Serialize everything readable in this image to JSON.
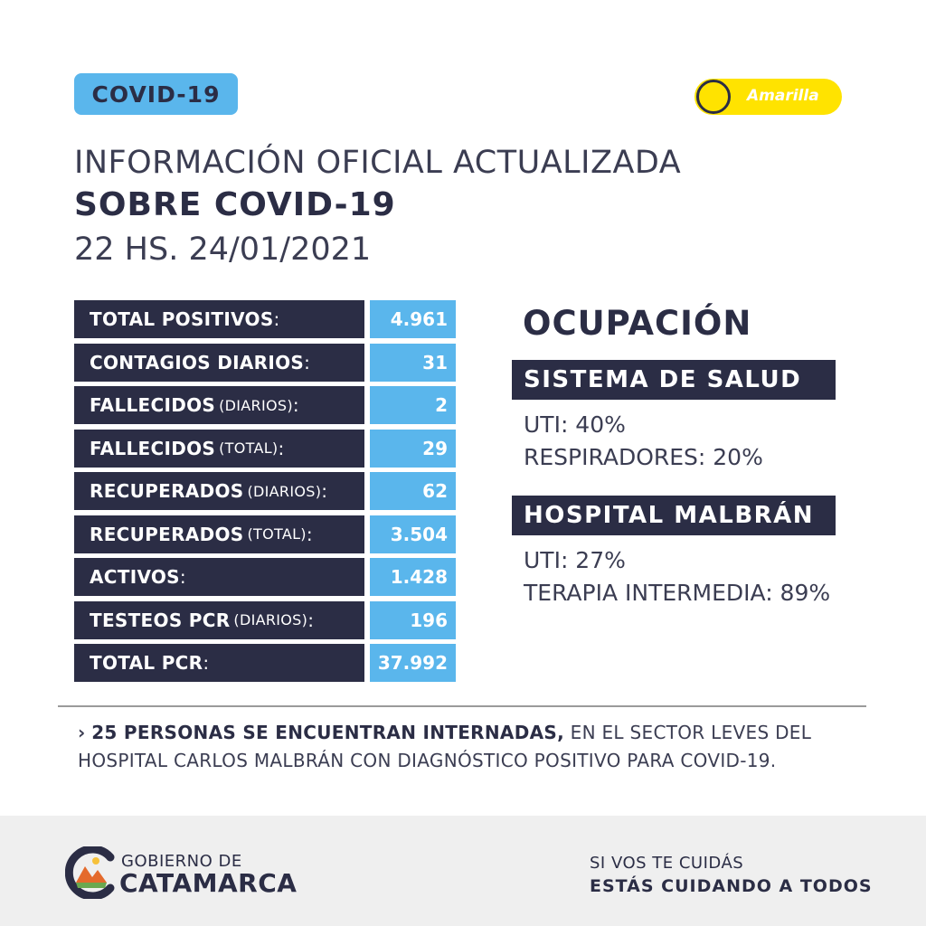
{
  "badge": "COVID-19",
  "alert_level": {
    "label": "Amarilla",
    "color": "#ffe300"
  },
  "header": {
    "line1": "INFORMACIÓN OFICIAL ACTUALIZADA",
    "line2": "SOBRE COVID-19",
    "line3": "22 HS. 24/01/2021"
  },
  "stats": [
    {
      "label": "TOTAL POSITIVOS",
      "qualifier": "",
      "value": "4.961"
    },
    {
      "label": "CONTAGIOS DIARIOS",
      "qualifier": "",
      "value": "31"
    },
    {
      "label": "FALLECIDOS",
      "qualifier": "(DIARIOS)",
      "value": "2"
    },
    {
      "label": "FALLECIDOS",
      "qualifier": "(TOTAL)",
      "value": "29"
    },
    {
      "label": "RECUPERADOS",
      "qualifier": "(DIARIOS)",
      "value": "62"
    },
    {
      "label": "RECUPERADOS",
      "qualifier": "(TOTAL)",
      "value": "3.504"
    },
    {
      "label": "ACTIVOS",
      "qualifier": "",
      "value": "1.428"
    },
    {
      "label": "TESTEOS PCR",
      "qualifier": "(DIARIOS)",
      "value": "196"
    },
    {
      "label": "TOTAL PCR",
      "qualifier": "",
      "value": "37.992"
    }
  ],
  "ocupacion": {
    "title": "OCUPACIÓN",
    "sistema": {
      "title": "SISTEMA DE SALUD",
      "line1": "UTI: 40%",
      "line2": "RESPIRADORES: 20%"
    },
    "hospital": {
      "title": "HOSPITAL MALBRÁN",
      "line1": "UTI: 27%",
      "line2": "TERAPIA INTERMEDIA: 89%"
    }
  },
  "note": {
    "arrow": "›",
    "bold": "25 PERSONAS SE ENCUENTRAN INTERNADAS,",
    "rest": " EN EL SECTOR LEVES DEL HOSPITAL CARLOS MALBRÁN CON DIAGNÓSTICO POSITIVO PARA COVID-19."
  },
  "footer": {
    "logo_line1": "GOBIERNO DE",
    "logo_line2": "CATAMARCA",
    "slogan_line1": "SI VOS TE CUIDÁS",
    "slogan_line2": "ESTÁS CUIDANDO A TODOS"
  },
  "colors": {
    "navy": "#2b2d45",
    "blue": "#5ab6ec",
    "yellow": "#ffe300"
  }
}
